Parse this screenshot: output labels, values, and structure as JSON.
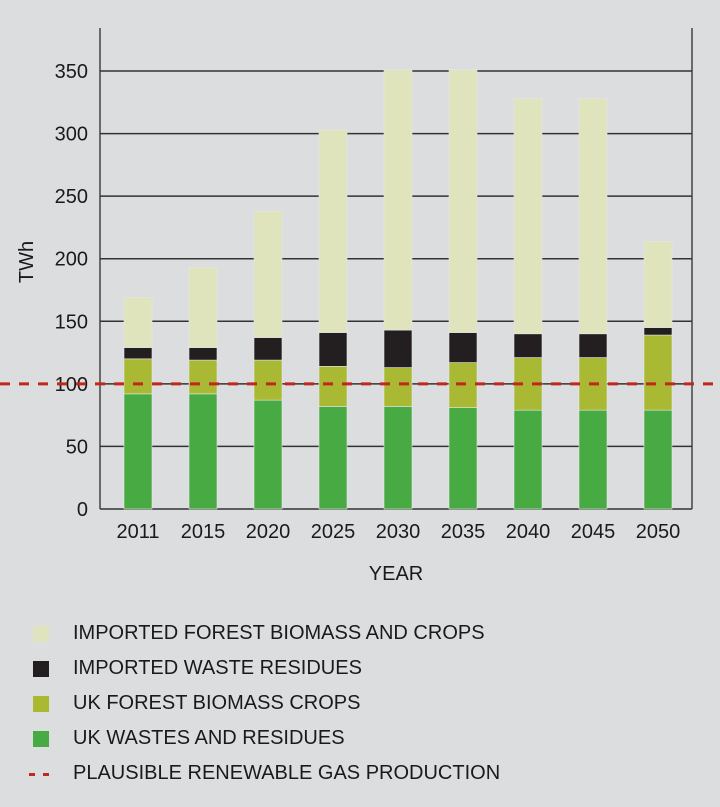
{
  "chart_data": {
    "type": "bar",
    "stacked": true,
    "title": "",
    "xlabel": "YEAR",
    "ylabel": "TWh",
    "ylim": [
      0,
      350
    ],
    "yticks": [
      0,
      50,
      100,
      150,
      200,
      250,
      300,
      350
    ],
    "categories": [
      "2011",
      "2015",
      "2020",
      "2025",
      "2030",
      "2035",
      "2040",
      "2045",
      "2050"
    ],
    "series": [
      {
        "name": "UK WASTES AND RESIDUES",
        "color": "#48aa42",
        "values": [
          92,
          92,
          87,
          82,
          82,
          81,
          79,
          79,
          79
        ]
      },
      {
        "name": "UK FOREST BIOMASS CROPS",
        "color": "#a9b933",
        "values": [
          28,
          27,
          32,
          32,
          31,
          36,
          42,
          42,
          60
        ]
      },
      {
        "name": "IMPORTED WASTE RESIDUES",
        "color": "#231f20",
        "values": [
          9,
          10,
          18,
          27,
          30,
          24,
          19,
          19,
          6
        ]
      },
      {
        "name": "IMPORTED FOREST BIOMASS AND CROPS",
        "color": "#dfe4bd",
        "values": [
          40,
          64,
          101,
          162,
          208,
          210,
          188,
          188,
          69
        ]
      }
    ],
    "reference_line": {
      "name": "PLAUSIBLE RENEWABLE GAS PRODUCTION",
      "value": 100,
      "color": "#c0281c"
    },
    "legend": {
      "placement": "bottom",
      "order": [
        "IMPORTED FOREST BIOMASS AND CROPS",
        "IMPORTED WASTE RESIDUES",
        "UK FOREST BIOMASS CROPS",
        "UK WASTES AND RESIDUES",
        "PLAUSIBLE RENEWABLE GAS PRODUCTION"
      ]
    },
    "grid": true
  }
}
